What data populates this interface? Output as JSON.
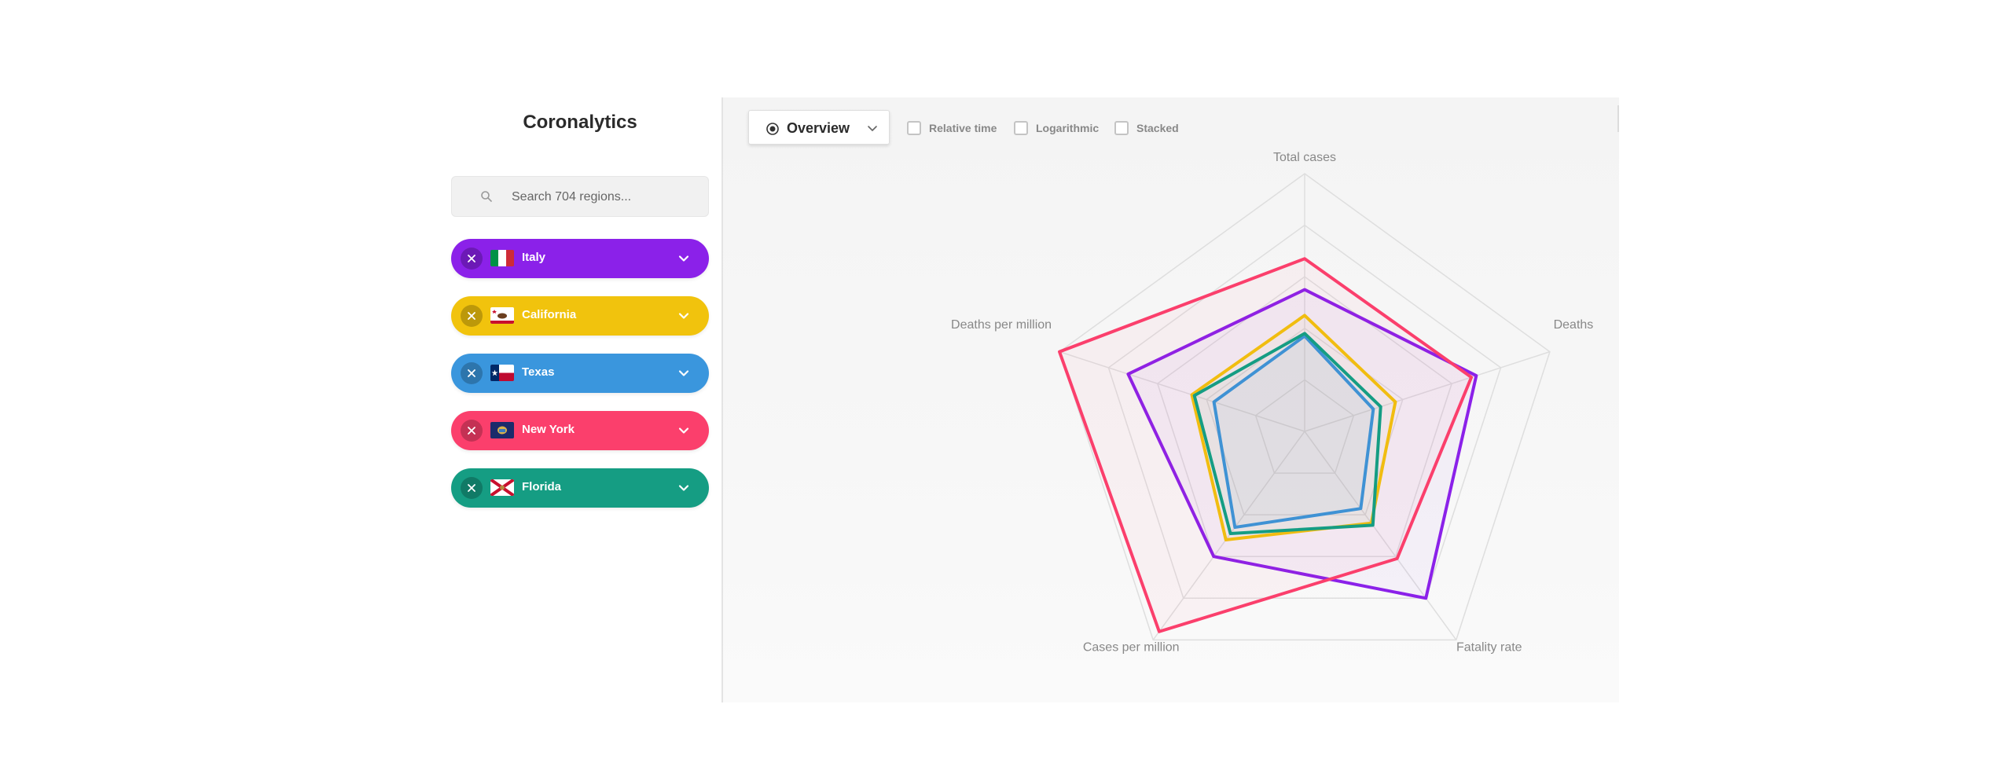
{
  "app": {
    "title": "Coronalytics"
  },
  "search": {
    "placeholder": "Search 704 regions...",
    "value": ""
  },
  "regions": [
    {
      "name": "Italy",
      "color": "#8b21e9",
      "flag": "italy-flag"
    },
    {
      "name": "California",
      "color": "#f1c30d",
      "flag": "california-flag"
    },
    {
      "name": "Texas",
      "color": "#3a96dd",
      "flag": "texas-flag"
    },
    {
      "name": "New York",
      "color": "#fb3f6c",
      "flag": "new-york-flag"
    },
    {
      "name": "Florida",
      "color": "#159d83",
      "flag": "florida-flag"
    }
  ],
  "toolbar": {
    "view_label": "Overview",
    "options": [
      {
        "label": "Relative time",
        "checked": false
      },
      {
        "label": "Logarithmic",
        "checked": false
      },
      {
        "label": "Stacked",
        "checked": false
      }
    ]
  },
  "chart_data": {
    "type": "radar",
    "axes": [
      "Total cases",
      "Deaths",
      "Fatality rate",
      "Cases per million",
      "Deaths per million"
    ],
    "range": [
      0,
      1
    ],
    "rings": 5,
    "series": [
      {
        "name": "Italy",
        "color": "#8b21e9",
        "values": [
          0.55,
          0.7,
          0.8,
          0.6,
          0.72
        ]
      },
      {
        "name": "California",
        "color": "#f1c30d",
        "values": [
          0.45,
          0.37,
          0.44,
          0.52,
          0.46
        ]
      },
      {
        "name": "Texas",
        "color": "#3a96dd",
        "values": [
          0.37,
          0.28,
          0.37,
          0.46,
          0.37
        ]
      },
      {
        "name": "New York",
        "color": "#fb3f6c",
        "values": [
          0.67,
          0.68,
          0.61,
          0.96,
          1.0
        ]
      },
      {
        "name": "Florida",
        "color": "#159d83",
        "values": [
          0.38,
          0.31,
          0.45,
          0.49,
          0.45
        ]
      }
    ]
  }
}
